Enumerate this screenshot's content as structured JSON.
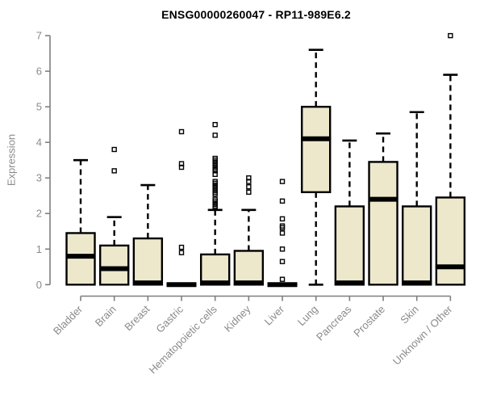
{
  "chart_data": {
    "type": "boxplot",
    "title": "ENSG00000260047 - RP11-989E6.2",
    "ylabel": "Expression",
    "xlabel": "",
    "ylim": [
      0,
      7
    ],
    "yticks": [
      0,
      1,
      2,
      3,
      4,
      5,
      6,
      7
    ],
    "grid": false,
    "legend": "none",
    "categories": [
      "Bladder",
      "Brain",
      "Breast",
      "Gastric",
      "Hematopoietic cells",
      "Kidney",
      "Liver",
      "Lung",
      "Pancreas",
      "Prostate",
      "Skin",
      "Unknown / Other"
    ],
    "series": [
      {
        "name": "Bladder",
        "low": 0,
        "q1": 0,
        "median": 0.8,
        "q3": 1.45,
        "high": 3.5,
        "outliers": []
      },
      {
        "name": "Brain",
        "low": 0,
        "q1": 0,
        "median": 0.45,
        "q3": 1.1,
        "high": 1.9,
        "outliers": [
          3.2,
          3.8
        ]
      },
      {
        "name": "Breast",
        "low": 0,
        "q1": 0,
        "median": 0.05,
        "q3": 1.3,
        "high": 2.8,
        "outliers": []
      },
      {
        "name": "Gastric",
        "low": 0,
        "q1": 0,
        "median": 0,
        "q3": 0,
        "high": 0,
        "outliers": [
          0.9,
          1.05,
          3.3,
          3.4,
          4.3
        ]
      },
      {
        "name": "Hematopoietic cells",
        "low": 0,
        "q1": 0,
        "median": 0.05,
        "q3": 0.85,
        "high": 2.1,
        "outliers": [
          2.15,
          2.2,
          2.25,
          2.3,
          2.35,
          2.4,
          2.55,
          2.6,
          2.65,
          2.7,
          2.75,
          2.8,
          2.85,
          2.9,
          3.1,
          3.2,
          3.25,
          3.3,
          3.35,
          3.4,
          3.45,
          3.5,
          3.55,
          4.2,
          4.5
        ]
      },
      {
        "name": "Kidney",
        "low": 0,
        "q1": 0,
        "median": 0.05,
        "q3": 0.95,
        "high": 2.1,
        "outliers": [
          2.6,
          2.75,
          2.9,
          3.0
        ]
      },
      {
        "name": "Liver",
        "low": 0,
        "q1": 0,
        "median": 0,
        "q3": 0,
        "high": 0,
        "outliers": [
          0.15,
          0.65,
          1.0,
          1.45,
          1.6,
          1.65,
          1.85,
          2.35,
          2.9
        ]
      },
      {
        "name": "Lung",
        "low": 0,
        "q1": 2.6,
        "median": 4.1,
        "q3": 5.0,
        "high": 6.6,
        "outliers": []
      },
      {
        "name": "Pancreas",
        "low": 0,
        "q1": 0,
        "median": 0.05,
        "q3": 2.2,
        "high": 4.05,
        "outliers": []
      },
      {
        "name": "Prostate",
        "low": 0,
        "q1": 0,
        "median": 2.4,
        "q3": 3.45,
        "high": 4.25,
        "outliers": []
      },
      {
        "name": "Skin",
        "low": 0,
        "q1": 0,
        "median": 0.05,
        "q3": 2.2,
        "high": 4.85,
        "outliers": []
      },
      {
        "name": "Unknown / Other",
        "low": 0,
        "q1": 0,
        "median": 0.5,
        "q3": 2.45,
        "high": 5.9,
        "outliers": [
          7.0
        ]
      }
    ],
    "colors": {
      "box_fill": "#EDE8CC",
      "box_stroke": "#000000",
      "median": "#000000",
      "whisker": "#000000",
      "outlier_stroke": "#000000",
      "axis": "#7F7F7F",
      "tick_text": "#8A8A8A",
      "title_text": "#000000",
      "background": "#FFFFFF"
    }
  }
}
